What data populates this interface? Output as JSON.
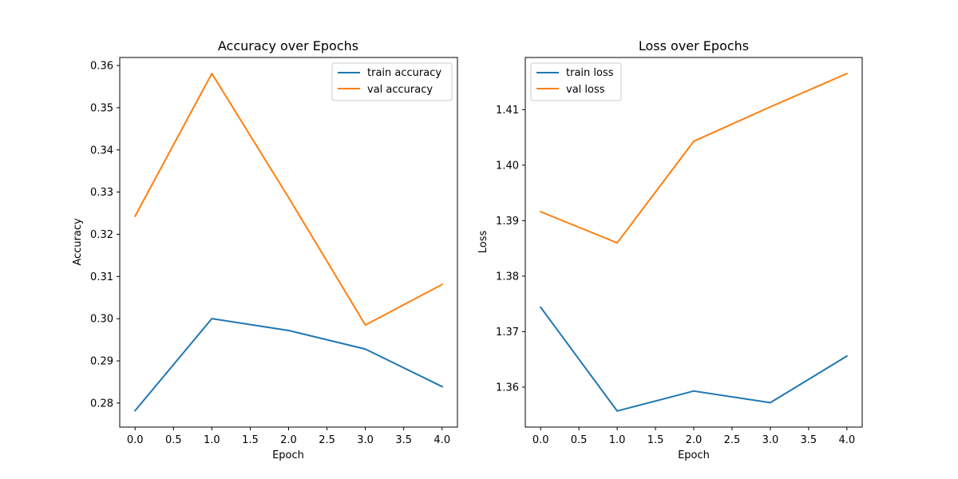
{
  "chart_data": [
    {
      "type": "line",
      "title": "Accuracy over Epochs",
      "xlabel": "Epoch",
      "ylabel": "Accuracy",
      "xlim": [
        -0.2,
        4.2
      ],
      "ylim": [
        0.2743,
        0.3619
      ],
      "xticks": [
        0.0,
        0.5,
        1.0,
        1.5,
        2.0,
        2.5,
        3.0,
        3.5,
        4.0
      ],
      "xtick_labels": [
        "0.0",
        "0.5",
        "1.0",
        "1.5",
        "2.0",
        "2.5",
        "3.0",
        "3.5",
        "4.0"
      ],
      "yticks": [
        0.28,
        0.29,
        0.3,
        0.31,
        0.32,
        0.33,
        0.34,
        0.35,
        0.36
      ],
      "ytick_labels": [
        "0.28",
        "0.29",
        "0.30",
        "0.31",
        "0.32",
        "0.33",
        "0.34",
        "0.35",
        "0.36"
      ],
      "grid": false,
      "legend_position": "top-right",
      "x": [
        0,
        1,
        2,
        3,
        4
      ],
      "series": [
        {
          "name": "train accuracy",
          "color": "#1f77b4",
          "values": [
            0.2782,
            0.3,
            0.2972,
            0.2928,
            0.2839
          ]
        },
        {
          "name": "val accuracy",
          "color": "#ff7f0e",
          "values": [
            0.3243,
            0.3581,
            0.3287,
            0.2985,
            0.3081
          ]
        }
      ]
    },
    {
      "type": "line",
      "title": "Loss over Epochs",
      "xlabel": "Epoch",
      "ylabel": "Loss",
      "xlim": [
        -0.2,
        4.2
      ],
      "ylim": [
        1.3528,
        1.4194
      ],
      "xticks": [
        0.0,
        0.5,
        1.0,
        1.5,
        2.0,
        2.5,
        3.0,
        3.5,
        4.0
      ],
      "xtick_labels": [
        "0.0",
        "0.5",
        "1.0",
        "1.5",
        "2.0",
        "2.5",
        "3.0",
        "3.5",
        "4.0"
      ],
      "yticks": [
        1.36,
        1.37,
        1.38,
        1.39,
        1.4,
        1.41
      ],
      "ytick_labels": [
        "1.36",
        "1.37",
        "1.38",
        "1.39",
        "1.40",
        "1.41"
      ],
      "grid": false,
      "legend_position": "top-left",
      "x": [
        0,
        1,
        2,
        3,
        4
      ],
      "series": [
        {
          "name": "train loss",
          "color": "#1f77b4",
          "values": [
            1.3744,
            1.3557,
            1.3593,
            1.3572,
            1.3656
          ]
        },
        {
          "name": "val loss",
          "color": "#ff7f0e",
          "values": [
            1.3916,
            1.386,
            1.4043,
            1.4105,
            1.4165
          ]
        }
      ]
    }
  ]
}
